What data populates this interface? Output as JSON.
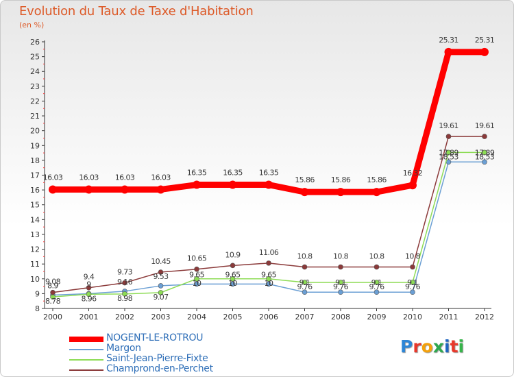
{
  "title": "Evolution du Taux de Taxe d'Habitation",
  "unit_label": "(en %)",
  "logo": {
    "letters": [
      "P",
      "r",
      "o",
      "x",
      "i",
      "t",
      "i"
    ],
    "colors": [
      "#2e86d6",
      "#e8382b",
      "#f4a10c",
      "#2fa84f",
      "#1f66c1",
      "#e8382b",
      "#36b44a"
    ]
  },
  "chart_data": {
    "type": "line",
    "title": "Evolution du Taux de Taxe d'Habitation",
    "ylabel": "(en %)",
    "xlabel": "",
    "x": [
      "2000",
      "2001",
      "2002",
      "2003",
      "2004",
      "2005",
      "2006",
      "2007",
      "2008",
      "2009",
      "2010",
      "2011",
      "2012"
    ],
    "ylim": [
      8,
      26
    ],
    "yticks": [
      8,
      9,
      10,
      11,
      12,
      13,
      14,
      15,
      16,
      17,
      18,
      19,
      20,
      21,
      22,
      23,
      24,
      25,
      26
    ],
    "grid": false,
    "legend_position": "bottom-left",
    "series": [
      {
        "name": "NOGENT-LE-ROTROU",
        "color": "#ff0000",
        "width": 9,
        "labels": true,
        "values": [
          16.03,
          16.03,
          16.03,
          16.03,
          16.35,
          16.35,
          16.35,
          15.86,
          15.86,
          15.86,
          16.32,
          25.31,
          25.31
        ]
      },
      {
        "name": "Margon",
        "color": "#6b9fd4",
        "width": 1.5,
        "labels": true,
        "values": [
          8.9,
          9.0,
          9.16,
          9.53,
          9.65,
          9.65,
          9.65,
          9.1,
          9.1,
          9.1,
          9.1,
          17.89,
          17.89
        ]
      },
      {
        "name": "Saint-Jean-Pierre-Fixte",
        "color": "#8ddc55",
        "width": 1.5,
        "labels": true,
        "values": [
          8.78,
          8.96,
          8.98,
          9.07,
          10.0,
          10.0,
          10.0,
          9.76,
          9.76,
          9.76,
          9.76,
          18.53,
          18.53
        ]
      },
      {
        "name": "Champrond-en-Perchet",
        "color": "#8b3a3a",
        "width": 1.5,
        "labels": true,
        "values": [
          9.08,
          9.4,
          9.73,
          10.45,
          10.65,
          10.9,
          11.06,
          10.8,
          10.8,
          10.8,
          10.8,
          19.61,
          19.61
        ]
      }
    ]
  }
}
